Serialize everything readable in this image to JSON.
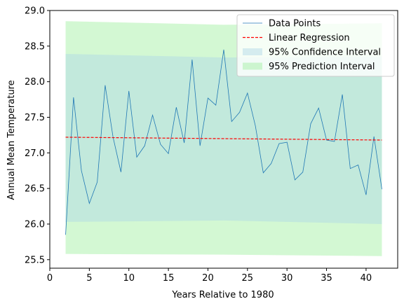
{
  "chart_data": {
    "type": "line",
    "xlabel": "Years Relative to 1980",
    "ylabel": "Annual Mean Temperature",
    "xlim": [
      0,
      44
    ],
    "ylim": [
      25.38,
      29.0
    ],
    "xticks": [
      0,
      5,
      10,
      15,
      20,
      25,
      30,
      35,
      40
    ],
    "yticks": [
      25.5,
      26.0,
      26.5,
      27.0,
      27.5,
      28.0,
      28.5,
      29.0
    ],
    "grid": false,
    "legend_position": "top-right",
    "legend": [
      "Data Points",
      "Linear Regression",
      "95% Confidence Interval",
      "95% Prediction Interval"
    ],
    "series": [
      {
        "name": "Data Points",
        "color": "#1f77b4",
        "x": [
          2,
          3,
          4,
          5,
          6,
          7,
          8,
          9,
          10,
          11,
          12,
          13,
          14,
          15,
          16,
          17,
          18,
          19,
          20,
          21,
          22,
          23,
          24,
          25,
          26,
          27,
          28,
          29,
          30,
          31,
          32,
          33,
          34,
          35,
          36,
          37,
          38,
          39,
          40,
          41,
          42
        ],
        "values": [
          25.85,
          27.78,
          26.75,
          26.29,
          26.59,
          27.95,
          27.22,
          26.73,
          27.87,
          26.94,
          27.1,
          27.53,
          27.12,
          26.99,
          27.64,
          27.14,
          28.31,
          27.1,
          27.77,
          27.67,
          28.45,
          27.44,
          27.57,
          27.84,
          27.38,
          26.72,
          26.85,
          27.13,
          27.15,
          26.62,
          26.73,
          27.41,
          27.63,
          27.18,
          27.16,
          27.82,
          26.78,
          26.83,
          26.41,
          27.23,
          26.49
        ]
      },
      {
        "name": "Linear Regression",
        "color": "#ff0000",
        "x": [
          2,
          42
        ],
        "values": [
          27.22,
          27.18
        ]
      }
    ],
    "bands": [
      {
        "name": "95% Prediction Interval",
        "color": "#90ee90",
        "x": [
          2,
          22,
          42
        ],
        "lower": [
          25.58,
          25.57,
          25.55
        ],
        "upper": [
          28.85,
          28.8,
          28.82
        ]
      },
      {
        "name": "95% Confidence Interval",
        "color": "#add8e6",
        "x": [
          2,
          22,
          42
        ],
        "lower": [
          26.03,
          26.05,
          26.0
        ],
        "upper": [
          28.39,
          28.34,
          28.35
        ]
      }
    ]
  }
}
